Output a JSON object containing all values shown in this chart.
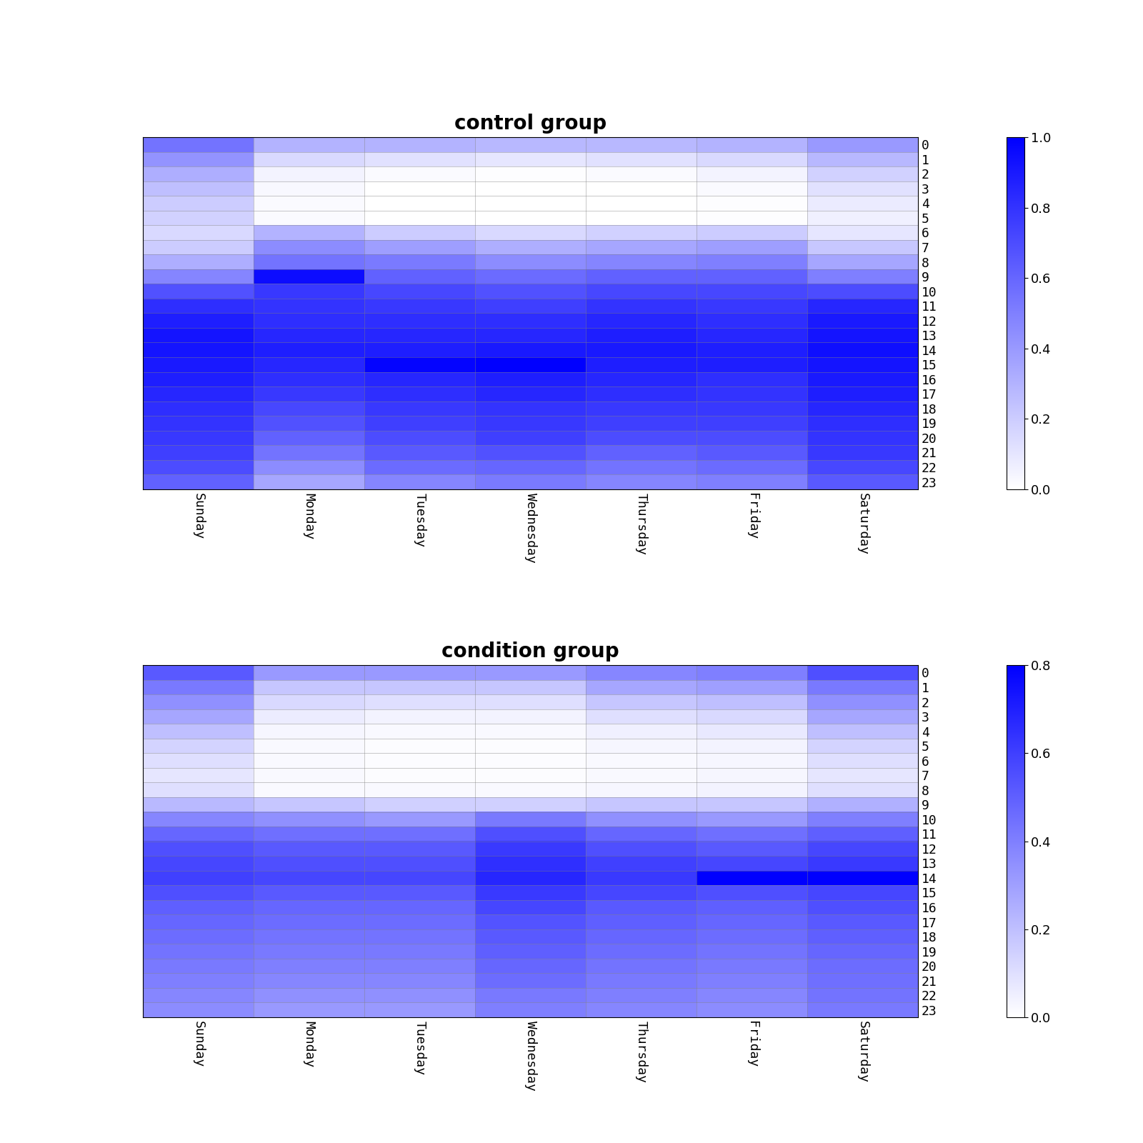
{
  "title1": "control group",
  "title2": "condition group",
  "days": [
    "Sunday",
    "Monday",
    "Tuesday",
    "Wednesday",
    "Thursday",
    "Friday",
    "Saturday"
  ],
  "hours": [
    0,
    1,
    2,
    3,
    4,
    5,
    6,
    7,
    8,
    9,
    10,
    11,
    12,
    13,
    14,
    15,
    16,
    17,
    18,
    19,
    20,
    21,
    22,
    23
  ],
  "control_data": [
    [
      0.55,
      0.3,
      0.3,
      0.28,
      0.28,
      0.3,
      0.4
    ],
    [
      0.42,
      0.15,
      0.12,
      0.1,
      0.12,
      0.15,
      0.28
    ],
    [
      0.32,
      0.05,
      0.02,
      0.01,
      0.02,
      0.05,
      0.18
    ],
    [
      0.25,
      0.03,
      0.0,
      0.0,
      0.0,
      0.02,
      0.12
    ],
    [
      0.2,
      0.02,
      0.0,
      0.0,
      0.0,
      0.01,
      0.08
    ],
    [
      0.18,
      0.02,
      0.0,
      0.0,
      0.0,
      0.01,
      0.06
    ],
    [
      0.15,
      0.3,
      0.2,
      0.15,
      0.18,
      0.2,
      0.1
    ],
    [
      0.2,
      0.45,
      0.38,
      0.32,
      0.35,
      0.38,
      0.22
    ],
    [
      0.32,
      0.55,
      0.52,
      0.45,
      0.48,
      0.5,
      0.35
    ],
    [
      0.48,
      0.95,
      0.62,
      0.58,
      0.62,
      0.62,
      0.5
    ],
    [
      0.68,
      0.78,
      0.72,
      0.68,
      0.72,
      0.72,
      0.7
    ],
    [
      0.82,
      0.8,
      0.78,
      0.75,
      0.8,
      0.78,
      0.85
    ],
    [
      0.88,
      0.82,
      0.82,
      0.82,
      0.85,
      0.82,
      0.9
    ],
    [
      0.92,
      0.85,
      0.85,
      0.85,
      0.88,
      0.85,
      0.92
    ],
    [
      0.92,
      0.88,
      0.88,
      0.9,
      0.9,
      0.88,
      0.94
    ],
    [
      0.9,
      0.85,
      0.98,
      1.0,
      0.88,
      0.88,
      0.92
    ],
    [
      0.88,
      0.82,
      0.85,
      0.88,
      0.85,
      0.82,
      0.9
    ],
    [
      0.85,
      0.78,
      0.82,
      0.85,
      0.82,
      0.8,
      0.88
    ],
    [
      0.82,
      0.72,
      0.78,
      0.8,
      0.78,
      0.78,
      0.85
    ],
    [
      0.8,
      0.68,
      0.75,
      0.78,
      0.75,
      0.75,
      0.82
    ],
    [
      0.78,
      0.62,
      0.7,
      0.75,
      0.7,
      0.7,
      0.8
    ],
    [
      0.75,
      0.55,
      0.65,
      0.68,
      0.62,
      0.65,
      0.78
    ],
    [
      0.7,
      0.45,
      0.58,
      0.6,
      0.55,
      0.58,
      0.72
    ],
    [
      0.62,
      0.35,
      0.48,
      0.52,
      0.48,
      0.5,
      0.65
    ]
  ],
  "condition_data": [
    [
      0.52,
      0.32,
      0.32,
      0.32,
      0.38,
      0.4,
      0.55
    ],
    [
      0.42,
      0.18,
      0.18,
      0.18,
      0.28,
      0.3,
      0.42
    ],
    [
      0.35,
      0.12,
      0.1,
      0.1,
      0.18,
      0.2,
      0.35
    ],
    [
      0.28,
      0.06,
      0.04,
      0.04,
      0.1,
      0.12,
      0.28
    ],
    [
      0.2,
      0.03,
      0.02,
      0.02,
      0.05,
      0.07,
      0.2
    ],
    [
      0.14,
      0.02,
      0.01,
      0.01,
      0.03,
      0.04,
      0.14
    ],
    [
      0.1,
      0.02,
      0.01,
      0.01,
      0.02,
      0.03,
      0.1
    ],
    [
      0.08,
      0.02,
      0.01,
      0.01,
      0.02,
      0.03,
      0.08
    ],
    [
      0.1,
      0.02,
      0.02,
      0.02,
      0.03,
      0.04,
      0.1
    ],
    [
      0.22,
      0.18,
      0.15,
      0.15,
      0.18,
      0.18,
      0.25
    ],
    [
      0.38,
      0.35,
      0.32,
      0.42,
      0.35,
      0.32,
      0.4
    ],
    [
      0.48,
      0.45,
      0.45,
      0.55,
      0.48,
      0.45,
      0.5
    ],
    [
      0.55,
      0.52,
      0.52,
      0.62,
      0.55,
      0.52,
      0.58
    ],
    [
      0.58,
      0.55,
      0.55,
      0.65,
      0.6,
      0.58,
      0.62
    ],
    [
      0.6,
      0.58,
      0.58,
      0.68,
      0.62,
      0.88,
      0.85
    ],
    [
      0.55,
      0.52,
      0.52,
      0.62,
      0.58,
      0.55,
      0.58
    ],
    [
      0.5,
      0.48,
      0.48,
      0.58,
      0.52,
      0.5,
      0.55
    ],
    [
      0.48,
      0.46,
      0.46,
      0.54,
      0.5,
      0.48,
      0.52
    ],
    [
      0.46,
      0.44,
      0.44,
      0.52,
      0.48,
      0.46,
      0.5
    ],
    [
      0.44,
      0.42,
      0.42,
      0.5,
      0.46,
      0.44,
      0.48
    ],
    [
      0.42,
      0.4,
      0.4,
      0.48,
      0.44,
      0.42,
      0.46
    ],
    [
      0.4,
      0.38,
      0.38,
      0.46,
      0.42,
      0.4,
      0.45
    ],
    [
      0.38,
      0.35,
      0.35,
      0.42,
      0.4,
      0.38,
      0.44
    ],
    [
      0.36,
      0.32,
      0.32,
      0.4,
      0.38,
      0.36,
      0.42
    ]
  ],
  "cmap_colors": [
    "#ffffff",
    "#ccccff",
    "#9999ff",
    "#6666ff",
    "#3333ff",
    "#0000ff"
  ],
  "figsize": [
    16,
    16
  ],
  "title_fontsize": 20,
  "tick_fontsize": 13,
  "cbar1_ticks": [
    0,
    0.2,
    0.4,
    0.6,
    0.8,
    1.0
  ],
  "cbar2_ticks": [
    0,
    0.2,
    0.4,
    0.6,
    0.8
  ],
  "vmax1": 1.0,
  "vmax2": 0.8
}
